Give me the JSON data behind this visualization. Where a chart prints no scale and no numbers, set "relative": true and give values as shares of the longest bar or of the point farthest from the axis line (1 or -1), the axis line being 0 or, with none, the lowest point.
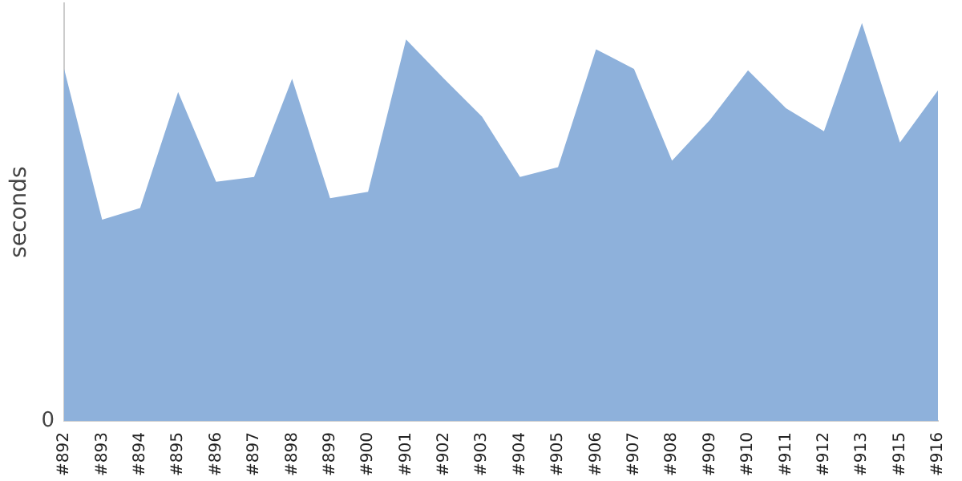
{
  "chart_data": {
    "type": "area",
    "ylabel": "seconds",
    "relative": true,
    "categories": [
      "#892",
      "#893",
      "#894",
      "#895",
      "#896",
      "#897",
      "#898",
      "#899",
      "#900",
      "#901",
      "#902",
      "#903",
      "#904",
      "#905",
      "#906",
      "#907",
      "#908",
      "#909",
      "#910",
      "#911",
      "#912",
      "#913",
      "#915",
      "#916"
    ],
    "series": [
      {
        "color": "#8eb1db",
        "values": [
          0.885,
          0.506,
          0.535,
          0.827,
          0.601,
          0.613,
          0.86,
          0.56,
          0.576,
          0.959,
          0.86,
          0.765,
          0.613,
          0.638,
          0.934,
          0.885,
          0.654,
          0.757,
          0.881,
          0.786,
          0.728,
          1,
          0.7,
          0.831
        ]
      }
    ],
    "annotations": [
      "0"
    ],
    "grid": false,
    "legend": false
  }
}
